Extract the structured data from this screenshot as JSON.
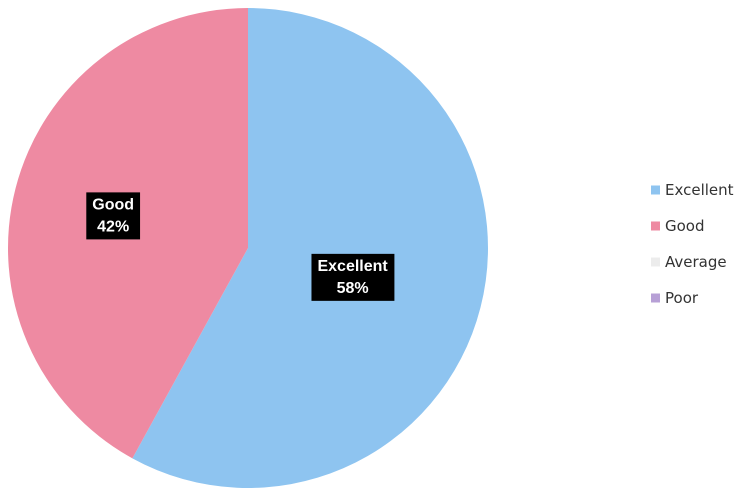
{
  "chart_data": {
    "type": "pie",
    "categories": [
      "Excellent",
      "Good",
      "Average",
      "Poor"
    ],
    "values": [
      58,
      42,
      0,
      0
    ],
    "colors": [
      "#8ec4f0",
      "#ee8aa2",
      "#ececec",
      "#b7a0d6"
    ],
    "data_labels": [
      {
        "category": "Excellent",
        "value_text": "58%"
      },
      {
        "category": "Good",
        "value_text": "42%"
      }
    ],
    "start_angle_deg": 0,
    "direction": "clockwise",
    "legend_position": "right"
  }
}
